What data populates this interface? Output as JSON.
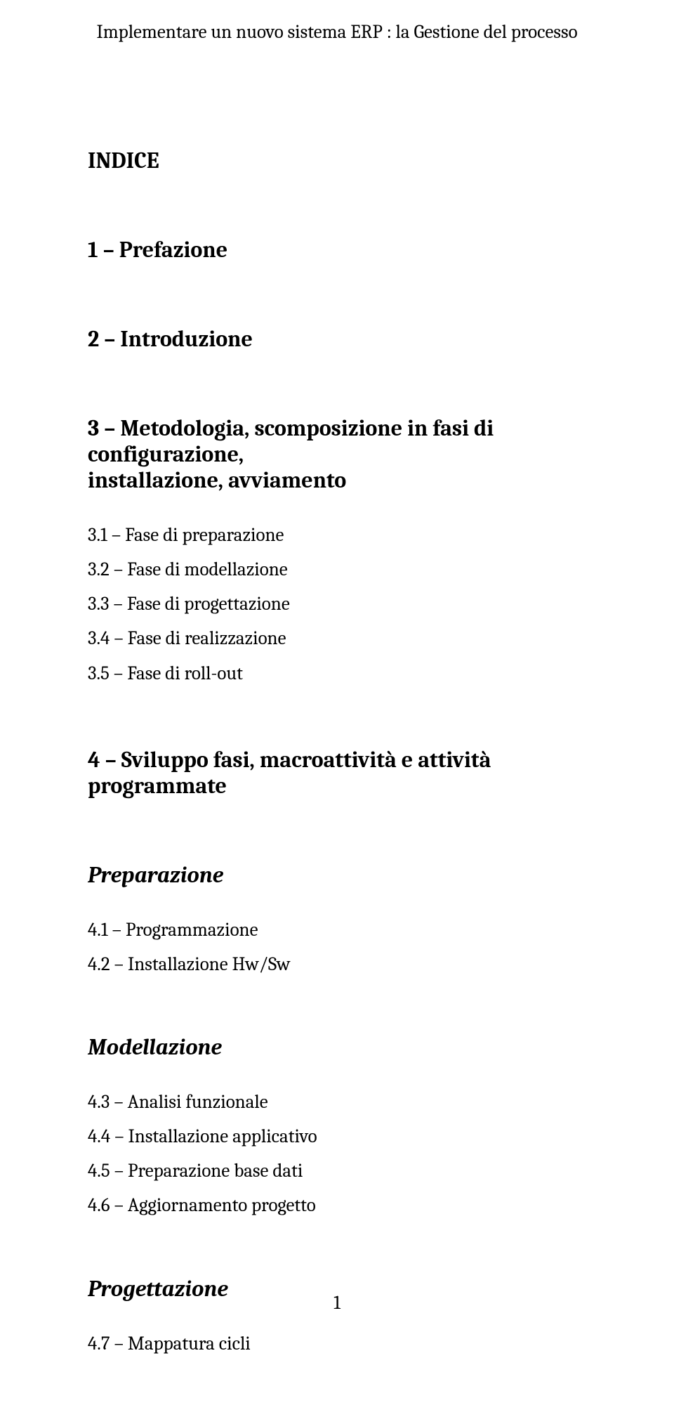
{
  "header": {
    "text": "Implementare un nuovo sistema ERP : la Gestione del processo"
  },
  "index_title": "INDICE",
  "sections": {
    "s1": "1 – Prefazione",
    "s2": "2 – Introduzione",
    "s3_a": "3 – Metodologia, scomposizione in fasi di configurazione,",
    "s3_b": "installazione, avviamento",
    "s3_items": {
      "i1": "3.1 – Fase di preparazione",
      "i2": "3.2 – Fase di modellazione",
      "i3": "3.3 – Fase di progettazione",
      "i4": "3.4 – Fase di realizzazione",
      "i5": "3.5 – Fase di roll-out"
    },
    "s4": "4 – Sviluppo fasi, macroattività e attività programmate",
    "s4_groups": {
      "g1": {
        "title": "Preparazione",
        "items": {
          "a": "4.1 – Programmazione",
          "b": "4.2 – Installazione Hw/Sw"
        }
      },
      "g2": {
        "title": "Modellazione",
        "items": {
          "a": "4.3 – Analisi funzionale",
          "b": "4.4 – Installazione applicativo",
          "c": "4.5 – Preparazione base dati",
          "d": "4.6 – Aggiornamento progetto"
        }
      },
      "g3": {
        "title": "Progettazione",
        "items": {
          "a": "4.7 – Mappatura cicli"
        }
      }
    }
  },
  "footer": {
    "page_number": "1"
  },
  "colors": {
    "text": "#000000",
    "background": "#ffffff"
  },
  "fonts": {
    "body_family": "Cambria, Georgia, serif",
    "header_size_pt": 20,
    "h1_size_pt": 24,
    "h2_size_pt": 24,
    "l2_size_pt": 20
  }
}
